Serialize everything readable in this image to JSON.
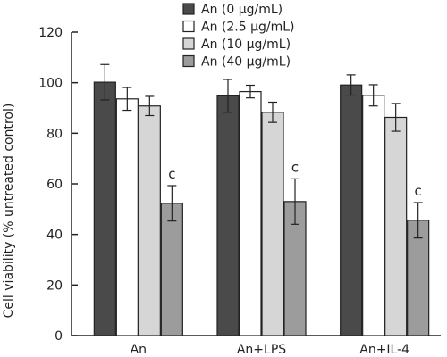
{
  "chart_data": {
    "type": "bar",
    "ylabel": "Cell viability (% untreated control)",
    "xlabel": "",
    "ylim": [
      0,
      120
    ],
    "yticks": [
      0,
      20,
      40,
      60,
      80,
      100,
      120
    ],
    "categories": [
      "An",
      "An+LPS",
      "An+IL-4"
    ],
    "legend_position": "top-center",
    "grid": false,
    "series": [
      {
        "name": "An (0 μg/mL)",
        "color": "#4a4a4a",
        "values": [
          100.2,
          94.8,
          99.1
        ],
        "errors": [
          7.0,
          6.5,
          4.0
        ],
        "annotations": [
          "",
          "",
          ""
        ]
      },
      {
        "name": "An (2.5 μg/mL)",
        "color": "#ffffff",
        "values": [
          93.6,
          96.5,
          95.0
        ],
        "errors": [
          4.5,
          2.5,
          4.2
        ],
        "annotations": [
          "",
          "",
          ""
        ]
      },
      {
        "name": "An (10 μg/mL)",
        "color": "#d6d6d6",
        "values": [
          90.8,
          88.3,
          86.3
        ],
        "errors": [
          3.8,
          4.0,
          5.5
        ],
        "annotations": [
          "",
          "",
          ""
        ]
      },
      {
        "name": "An (40 μg/mL)",
        "color": "#9c9c9c",
        "values": [
          52.3,
          53.0,
          45.6
        ],
        "errors": [
          7.0,
          9.0,
          7.0
        ],
        "annotations": [
          "c",
          "c",
          "c"
        ]
      }
    ]
  }
}
